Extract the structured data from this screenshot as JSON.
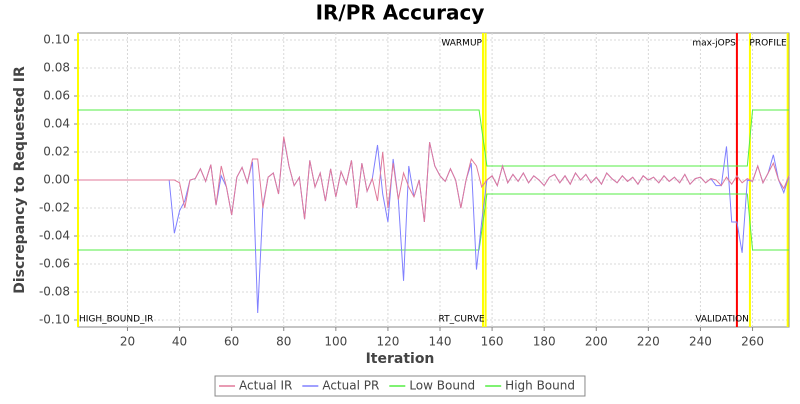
{
  "chart_data": {
    "type": "line",
    "title": "IR/PR Accuracy",
    "x_label": "Iteration",
    "y_label": "Discrepancy to Requested IR",
    "xlim": [
      1,
      274
    ],
    "ylim": [
      -0.105,
      0.105
    ],
    "xticks": [
      20,
      40,
      60,
      80,
      100,
      120,
      140,
      160,
      180,
      200,
      220,
      240,
      260
    ],
    "yticks": [
      {
        "value": 0.1,
        "label": "0.10"
      },
      {
        "value": 0.08,
        "label": "0.08"
      },
      {
        "value": 0.06,
        "label": "0.06"
      },
      {
        "value": 0.04,
        "label": "0.04"
      },
      {
        "value": 0.02,
        "label": "0.02"
      },
      {
        "value": 0,
        "label": "0.00"
      },
      {
        "value": -0.02,
        "label": "-0.02"
      },
      {
        "value": -0.04,
        "label": "-0.04"
      },
      {
        "value": -0.06,
        "label": "-0.06"
      },
      {
        "value": -0.08,
        "label": "-0.08"
      },
      {
        "value": -0.1,
        "label": "-0.10"
      }
    ],
    "grid": true,
    "legend": "bottom",
    "markers": [
      {
        "label": "HIGH_BOUND_IR",
        "x": 1,
        "color": "#ffff00",
        "position": "bottom"
      },
      {
        "label": "WARMUP",
        "x": 156.5,
        "color": "#ffff00",
        "position": "top"
      },
      {
        "label": "RT_CURVE",
        "x": 157.5,
        "color": "#ffff00",
        "position": "bottom"
      },
      {
        "label": "max-jOPS",
        "x": 254,
        "color": "#ff0000",
        "position": "top"
      },
      {
        "label": "VALIDATION",
        "x": 259,
        "color": "#ffff00",
        "position": "bottom"
      },
      {
        "label": "PROFILE",
        "x": 273.5,
        "color": "#ffff00",
        "position": "top"
      }
    ],
    "series": [
      {
        "name": "Actual IR",
        "color": "#e07a9a",
        "x": [
          1,
          36,
          38,
          40,
          42,
          44,
          46,
          48,
          50,
          52,
          54,
          56,
          58,
          60,
          62,
          64,
          66,
          68,
          70,
          72,
          74,
          76,
          78,
          80,
          82,
          84,
          86,
          88,
          90,
          92,
          94,
          96,
          98,
          100,
          102,
          104,
          106,
          108,
          110,
          112,
          114,
          116,
          118,
          120,
          122,
          124,
          126,
          128,
          130,
          132,
          134,
          136,
          138,
          140,
          142,
          144,
          146,
          148,
          150,
          152,
          154,
          156,
          158,
          160,
          162,
          164,
          166,
          168,
          170,
          172,
          174,
          176,
          178,
          180,
          182,
          184,
          186,
          188,
          190,
          192,
          194,
          196,
          198,
          200,
          202,
          204,
          206,
          208,
          210,
          212,
          214,
          216,
          218,
          220,
          222,
          224,
          226,
          228,
          230,
          232,
          234,
          236,
          238,
          240,
          242,
          244,
          246,
          248,
          250,
          252,
          254,
          256,
          258,
          260,
          262,
          264,
          266,
          268,
          270,
          272,
          274
        ],
        "values": [
          0,
          0,
          0,
          -0.002,
          -0.02,
          0,
          0.001,
          0.008,
          -0.001,
          0.011,
          -0.018,
          0.01,
          -0.005,
          -0.025,
          0.002,
          0.009,
          -0.002,
          0.015,
          0.015,
          -0.02,
          0.002,
          0.005,
          -0.01,
          0.031,
          0.01,
          -0.004,
          0.002,
          -0.028,
          0.014,
          -0.005,
          0.005,
          -0.015,
          0.008,
          -0.012,
          0.006,
          -0.003,
          0.014,
          -0.02,
          0.012,
          -0.008,
          0.001,
          -0.015,
          0.02,
          -0.02,
          0.012,
          -0.014,
          0.005,
          -0.005,
          -0.012,
          0,
          -0.03,
          0.027,
          0.01,
          0.003,
          -0.001,
          0.008,
          0,
          -0.02,
          0,
          0.015,
          0.01,
          -0.005,
          0,
          0.003,
          -0.004,
          0.01,
          -0.002,
          0.004,
          -0.001,
          0.005,
          -0.002,
          0.003,
          0,
          -0.004,
          0.002,
          0.004,
          -0.002,
          0.003,
          -0.003,
          0.005,
          0,
          0.004,
          -0.002,
          0.002,
          -0.003,
          0.005,
          0.001,
          -0.002,
          0.003,
          -0.001,
          0.002,
          -0.003,
          0.003,
          0,
          0.002,
          -0.002,
          0.003,
          -0.001,
          0.002,
          -0.002,
          0.004,
          -0.003,
          0.001,
          0.002,
          -0.002,
          0.001,
          0,
          -0.004,
          0.002,
          -0.003,
          0.003,
          -0.002,
          0.001,
          -0.001,
          0.01,
          -0.002,
          0.005,
          0.012,
          0,
          -0.006,
          0.003
        ]
      },
      {
        "name": "Actual PR",
        "color": "#8080ff",
        "x": [
          1,
          36,
          38,
          40,
          42,
          44,
          46,
          48,
          50,
          52,
          54,
          56,
          58,
          60,
          62,
          64,
          66,
          68,
          70,
          72,
          74,
          76,
          78,
          80,
          82,
          84,
          86,
          88,
          90,
          92,
          94,
          96,
          98,
          100,
          102,
          104,
          106,
          108,
          110,
          112,
          114,
          116,
          118,
          120,
          122,
          124,
          126,
          128,
          130,
          132,
          134,
          136,
          138,
          140,
          142,
          144,
          146,
          148,
          150,
          152,
          154,
          156,
          158,
          160,
          162,
          164,
          166,
          168,
          170,
          172,
          174,
          176,
          178,
          180,
          182,
          184,
          186,
          188,
          190,
          192,
          194,
          196,
          198,
          200,
          202,
          204,
          206,
          208,
          210,
          212,
          214,
          216,
          218,
          220,
          222,
          224,
          226,
          228,
          230,
          232,
          234,
          236,
          238,
          240,
          242,
          244,
          246,
          248,
          250,
          252,
          254,
          256,
          258,
          260,
          262,
          264,
          266,
          268,
          270,
          272,
          274
        ],
        "values": [
          0,
          0,
          -0.038,
          -0.022,
          -0.015,
          0,
          0.001,
          0.008,
          -0.001,
          0.011,
          -0.018,
          0.003,
          -0.005,
          -0.025,
          0.002,
          0.009,
          -0.002,
          0.013,
          -0.095,
          -0.018,
          0.002,
          0.005,
          -0.01,
          0.03,
          0.01,
          -0.004,
          0.002,
          -0.028,
          0.014,
          -0.005,
          0.005,
          -0.015,
          0.008,
          -0.012,
          0.006,
          -0.003,
          0.014,
          -0.02,
          0.012,
          -0.008,
          0.001,
          0.025,
          -0.01,
          -0.03,
          0.015,
          -0.014,
          -0.072,
          0.01,
          -0.012,
          0,
          -0.03,
          0.027,
          0.01,
          0.003,
          -0.001,
          0.008,
          0,
          -0.02,
          0,
          0.012,
          -0.064,
          -0.03,
          0,
          0.003,
          -0.004,
          0.01,
          -0.002,
          0.004,
          -0.001,
          0.005,
          -0.002,
          0.003,
          0,
          -0.004,
          0.002,
          0.004,
          -0.002,
          0.003,
          -0.003,
          0.005,
          0,
          0.004,
          -0.002,
          0.002,
          -0.003,
          0.005,
          0.001,
          -0.002,
          0.003,
          -0.001,
          0.002,
          -0.003,
          0.003,
          0,
          0.002,
          -0.002,
          0.003,
          -0.001,
          0.002,
          -0.002,
          0.004,
          -0.003,
          0.001,
          0.002,
          -0.002,
          0.001,
          -0.004,
          -0.004,
          0.024,
          -0.03,
          -0.03,
          -0.052,
          0,
          -0.001,
          0.01,
          -0.002,
          0.005,
          0.018,
          0,
          -0.009,
          0.003
        ]
      },
      {
        "name": "Low Bound",
        "color": "#55ee44",
        "x": [
          1,
          155,
          158,
          258,
          260,
          274
        ],
        "values": [
          -0.05,
          -0.05,
          -0.01,
          -0.01,
          -0.05,
          -0.05
        ]
      },
      {
        "name": "High Bound",
        "color": "#55ee44",
        "x": [
          1,
          155,
          158,
          258,
          260,
          274
        ],
        "values": [
          0.05,
          0.05,
          0.01,
          0.01,
          0.05,
          0.05
        ]
      }
    ]
  }
}
